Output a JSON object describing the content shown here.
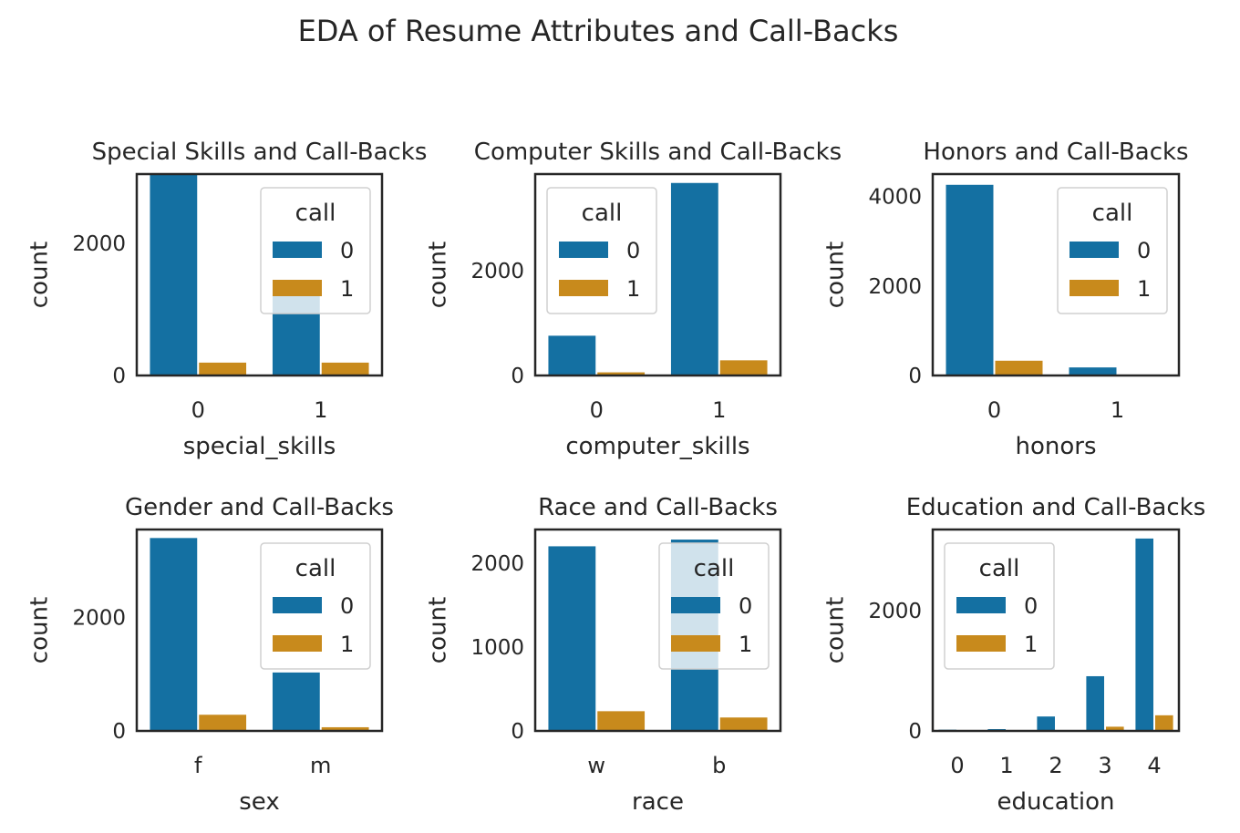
{
  "figure": {
    "title": "EDA of Resume Attributes and Call-Backs"
  },
  "colors": {
    "call_0": "#1470a2",
    "call_1": "#c88a1c",
    "axis": "#262626",
    "text": "#262626",
    "legend_border": "#d0d0d0"
  },
  "chart_data": [
    {
      "type": "bar",
      "title": "Special Skills and Call-Backs",
      "xlabel": "special_skills",
      "ylabel": "count",
      "categories": [
        "0",
        "1"
      ],
      "yticks": [
        0,
        2000
      ],
      "ylim": [
        0,
        3050
      ],
      "grid": false,
      "legend": {
        "title": "call",
        "placement": "upper right"
      },
      "series": [
        {
          "name": "0",
          "values": [
            3050,
            1220
          ]
        },
        {
          "name": "1",
          "values": [
            195,
            195
          ]
        }
      ]
    },
    {
      "type": "bar",
      "title": "Computer Skills and Call-Backs",
      "xlabel": "computer_skills",
      "ylabel": "count",
      "categories": [
        "0",
        "1"
      ],
      "yticks": [
        0,
        2000
      ],
      "ylim": [
        0,
        3850
      ],
      "grid": false,
      "legend": {
        "title": "call",
        "placement": "upper left"
      },
      "series": [
        {
          "name": "0",
          "values": [
            760,
            3680
          ]
        },
        {
          "name": "1",
          "values": [
            60,
            290
          ]
        }
      ]
    },
    {
      "type": "bar",
      "title": "Honors and Call-Backs",
      "xlabel": "honors",
      "ylabel": "count",
      "categories": [
        "0",
        "1"
      ],
      "yticks": [
        0,
        2000,
        4000
      ],
      "ylim": [
        0,
        4500
      ],
      "grid": false,
      "legend": {
        "title": "call",
        "placement": "upper right"
      },
      "series": [
        {
          "name": "0",
          "values": [
            4260,
            180
          ]
        },
        {
          "name": "1",
          "values": [
            330,
            20
          ]
        }
      ]
    },
    {
      "type": "bar",
      "title": "Gender and Call-Backs",
      "xlabel": "sex",
      "ylabel": "count",
      "categories": [
        "f",
        "m"
      ],
      "yticks": [
        0,
        2000
      ],
      "ylim": [
        0,
        3550
      ],
      "grid": false,
      "legend": {
        "title": "call",
        "placement": "upper right"
      },
      "series": [
        {
          "name": "0",
          "values": [
            3400,
            1030
          ]
        },
        {
          "name": "1",
          "values": [
            285,
            65
          ]
        }
      ]
    },
    {
      "type": "bar",
      "title": "Race and Call-Backs",
      "xlabel": "race",
      "ylabel": "count",
      "categories": [
        "w",
        "b"
      ],
      "yticks": [
        0,
        1000,
        2000
      ],
      "ylim": [
        0,
        2400
      ],
      "grid": false,
      "legend": {
        "title": "call",
        "placement": "upper right"
      },
      "series": [
        {
          "name": "0",
          "values": [
            2200,
            2280
          ]
        },
        {
          "name": "1",
          "values": [
            235,
            160
          ]
        }
      ]
    },
    {
      "type": "bar",
      "title": "Education and Call-Backs",
      "xlabel": "education",
      "ylabel": "count",
      "categories": [
        "0",
        "1",
        "2",
        "3",
        "4"
      ],
      "yticks": [
        0,
        2000
      ],
      "ylim": [
        0,
        3350
      ],
      "grid": false,
      "legend": {
        "title": "call",
        "placement": "upper left"
      },
      "series": [
        {
          "name": "0",
          "values": [
            20,
            30,
            240,
            910,
            3200
          ]
        },
        {
          "name": "1",
          "values": [
            0,
            0,
            10,
            70,
            260
          ]
        }
      ]
    }
  ]
}
